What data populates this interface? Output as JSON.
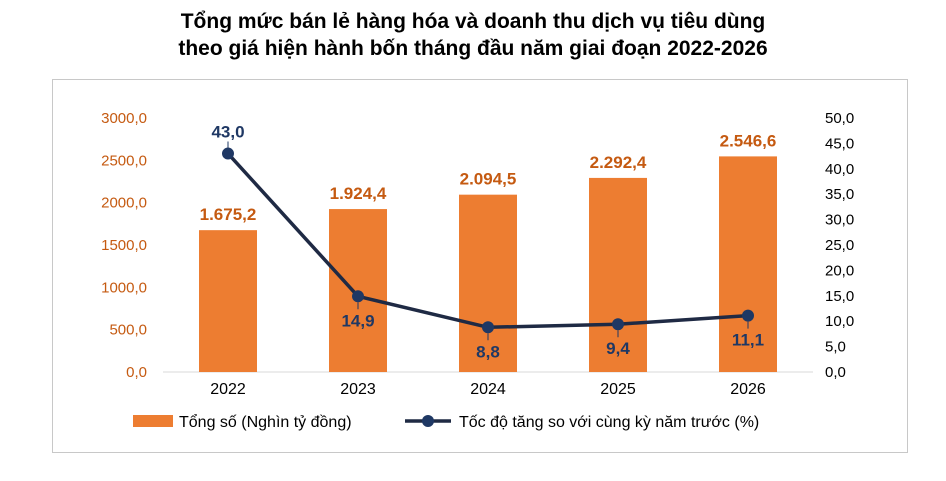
{
  "title_line1": "Tổng mức bán lẻ hàng hóa và doanh thu dịch vụ tiêu dùng",
  "title_line2": "theo giá hiện hành bốn tháng đầu năm giai đoạn 2022-2026",
  "colors": {
    "bar": "#ED7D31",
    "line": "#1F2A44",
    "marker": "#1F3864",
    "bar_label": "#C55A11",
    "line_label": "#1F3864",
    "left_axis": "#C55A11",
    "grid": "#D9D9D9"
  },
  "chart_data": {
    "type": "bar",
    "categories": [
      "2022",
      "2023",
      "2024",
      "2025",
      "2026"
    ],
    "series": [
      {
        "name": "Tổng số (Nghìn tỷ đồng)",
        "type": "bar",
        "axis": "left",
        "values": [
          1675.2,
          1924.4,
          2094.5,
          2292.4,
          2546.6
        ],
        "labels": [
          "1.675,2",
          "1.924,4",
          "2.094,5",
          "2.292,4",
          "2.546,6"
        ]
      },
      {
        "name": "Tốc độ tăng so với cùng kỳ năm trước (%)",
        "type": "line",
        "axis": "right",
        "values": [
          43.0,
          14.9,
          8.8,
          9.4,
          11.1
        ],
        "labels": [
          "43,0",
          "14,9",
          "8,8",
          "9,4",
          "11,1"
        ]
      }
    ],
    "left_axis": {
      "ylim": [
        0,
        3000
      ],
      "ticks": [
        "0,0",
        "500,0",
        "1000,0",
        "1500,0",
        "2000,0",
        "2500,0",
        "3000,0"
      ]
    },
    "right_axis": {
      "ylim": [
        0,
        50
      ],
      "ticks": [
        "0,0",
        "5,0",
        "10,0",
        "15,0",
        "20,0",
        "25,0",
        "30,0",
        "35,0",
        "40,0",
        "45,0",
        "50,0"
      ]
    },
    "grid": false,
    "legend": "bottom"
  }
}
